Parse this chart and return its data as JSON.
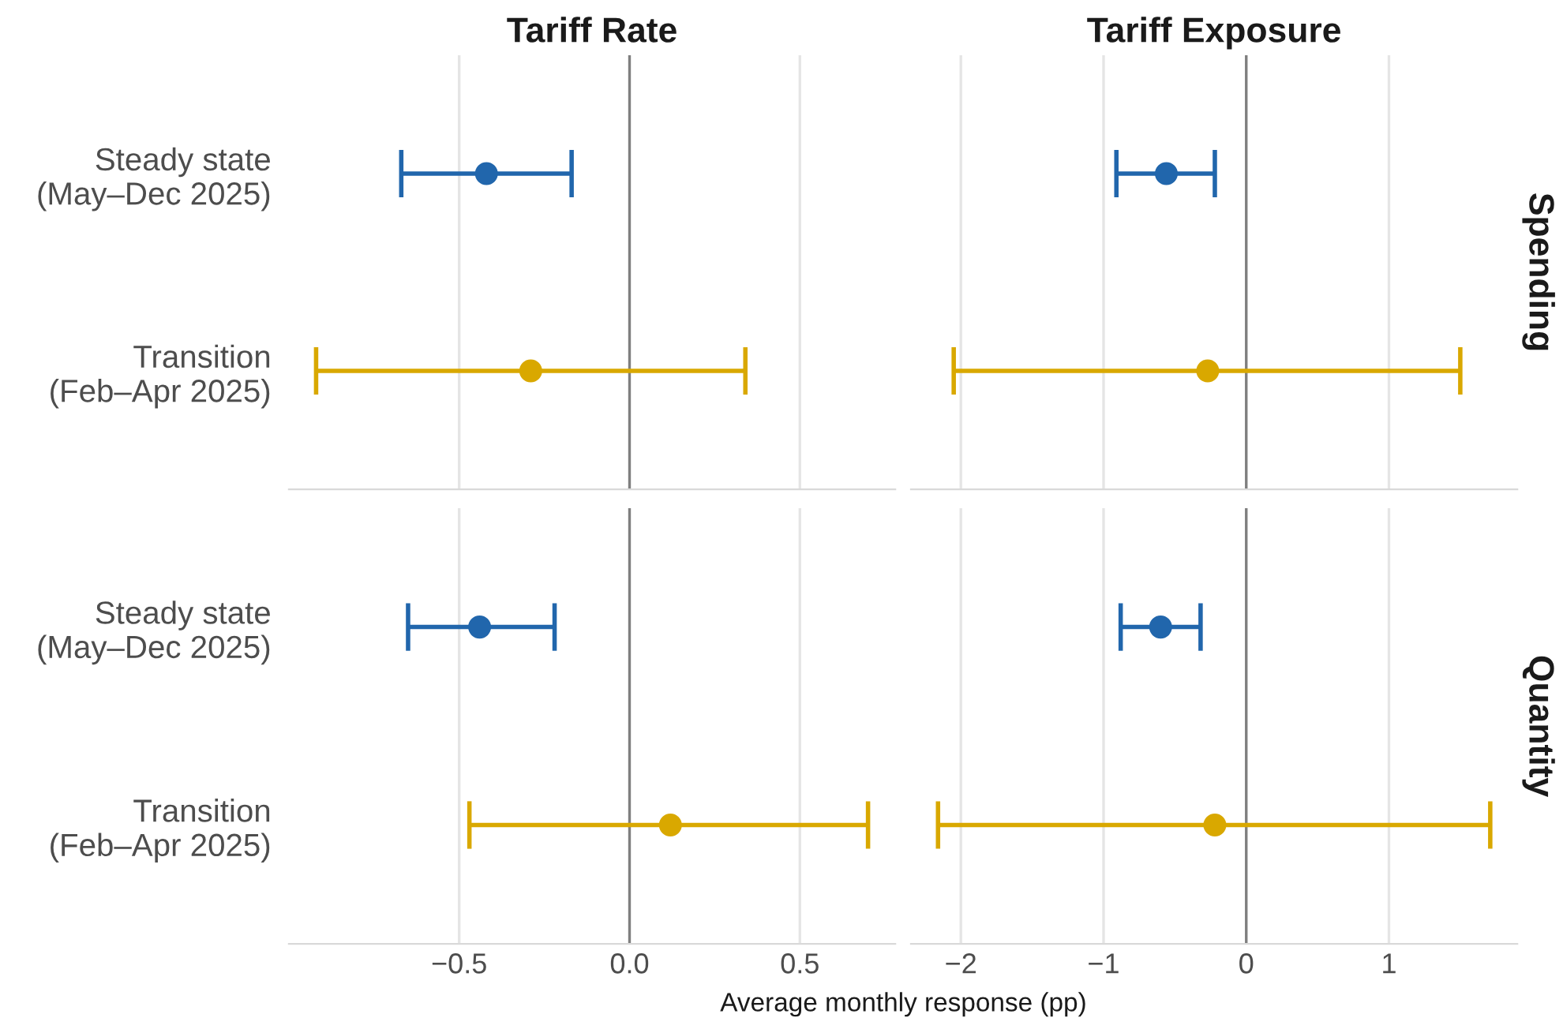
{
  "chart_data": [
    {
      "type": "scatter",
      "orientation": "horizontal",
      "title": "Tariff Rate",
      "categories": [
        "Steady state\n(May–Dec 2025)",
        "Transition\n(Feb–Apr 2025)"
      ],
      "values": [
        -0.42,
        -0.29
      ],
      "errors": [
        [
          -0.67,
          -0.17
        ],
        [
          -0.92,
          0.34
        ]
      ],
      "colors": [
        "#2166ac",
        "#d9a800"
      ],
      "marker": "circle",
      "xlim": [
        -1.0,
        0.78
      ],
      "xticks": [
        -0.5,
        0,
        0.5
      ],
      "grid": "x",
      "ref_lines": [
        {
          "axis": "x",
          "value": 0,
          "color": "#7f7f7f"
        }
      ],
      "tick_labels": "y"
    },
    {
      "type": "scatter",
      "orientation": "horizontal",
      "title": "Tariff Exposure",
      "y2label": "Spending",
      "categories": [
        null,
        null
      ],
      "values": [
        -0.56,
        -0.27
      ],
      "errors": [
        [
          -0.91,
          -0.22
        ],
        [
          -2.05,
          1.5
        ]
      ],
      "colors": [
        "#2166ac",
        "#d9a800"
      ],
      "marker": "circle",
      "xlim": [
        -2.35,
        1.9
      ],
      "xticks": [
        -2,
        -1,
        0,
        1
      ],
      "grid": "x",
      "ref_lines": [
        {
          "axis": "x",
          "value": 0,
          "color": "#7f7f7f"
        }
      ],
      "tick_labels": false
    },
    {
      "type": "scatter",
      "orientation": "horizontal",
      "xlabel": "Average monthly response (pp)",
      "categories": [
        "Steady state\n(May–Dec 2025)",
        "Transition\n(Feb–Apr 2025)"
      ],
      "values": [
        -0.44,
        0.12
      ],
      "errors": [
        [
          -0.65,
          -0.22
        ],
        [
          -0.47,
          0.7
        ]
      ],
      "colors": [
        "#2166ac",
        "#d9a800"
      ],
      "marker": "circle",
      "xlim": [
        -1.0,
        0.78
      ],
      "xticks": [
        {
          "value": -0.5,
          "label": "−0.5"
        },
        {
          "value": 0,
          "label": "0.0"
        },
        {
          "value": 0.5,
          "label": "0.5"
        }
      ],
      "grid": "x",
      "ref_lines": [
        {
          "axis": "x",
          "value": 0,
          "color": "#7f7f7f"
        }
      ]
    },
    {
      "type": "scatter",
      "orientation": "horizontal",
      "y2label": "Quantity",
      "categories": [
        null,
        null
      ],
      "values": [
        -0.6,
        -0.22
      ],
      "errors": [
        [
          -0.88,
          -0.32
        ],
        [
          -2.16,
          1.71
        ]
      ],
      "colors": [
        "#2166ac",
        "#d9a800"
      ],
      "marker": "circle",
      "xlim": [
        -2.35,
        1.9
      ],
      "xticks": [
        {
          "value": -2,
          "label": "−2"
        },
        {
          "value": -1,
          "label": "−1"
        },
        0,
        1
      ],
      "grid": "x",
      "ref_lines": [
        {
          "axis": "x",
          "value": 0,
          "color": "#7f7f7f"
        }
      ],
      "tick_labels": "x"
    }
  ]
}
